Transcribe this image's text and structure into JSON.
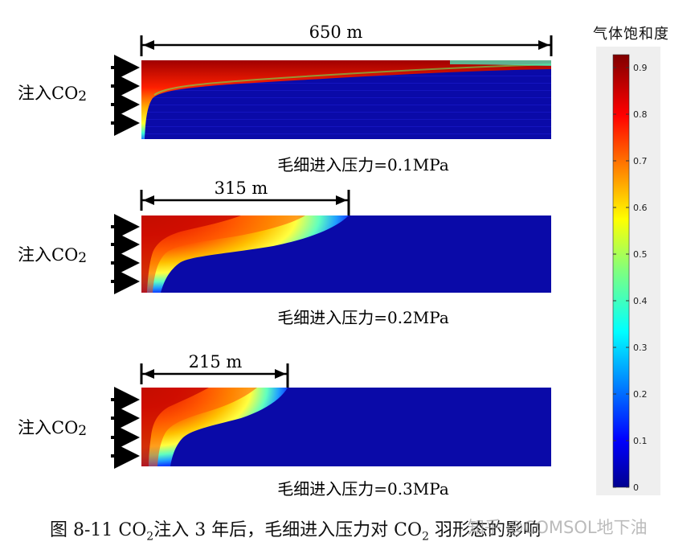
{
  "panels": [
    {
      "inject_label": "注入CO",
      "inject_sub": "2",
      "width_label": "650 m",
      "pressure_label": "毛细进入压力=0.1MPa",
      "plume_length_m": 650
    },
    {
      "inject_label": "注入CO",
      "inject_sub": "2",
      "width_label": "315 m",
      "pressure_label": "毛细进入压力=0.2MPa",
      "plume_length_m": 315
    },
    {
      "inject_label": "注入CO",
      "inject_sub": "2",
      "width_label": "215 m",
      "pressure_label": "毛细进入压力=0.3MPa",
      "plume_length_m": 215
    }
  ],
  "colorbar": {
    "title": "气体饱和度",
    "ticks": [
      "0.9",
      "0.8",
      "0.7",
      "0.6",
      "0.5",
      "0.4",
      "0.3",
      "0.2",
      "0.1",
      "0"
    ]
  },
  "caption": {
    "prefix": "图 8-11 CO",
    "sub1": "2",
    "middle": "注入 3 年后，毛细进入压力对 CO",
    "sub2": "2",
    "suffix": " 羽形态的影响"
  },
  "watermark": "知乎 @COMSOL地下油",
  "colors": {
    "background_fluid": "#0a0aa8",
    "saturated": "#a00000",
    "arrow": "#000000"
  }
}
